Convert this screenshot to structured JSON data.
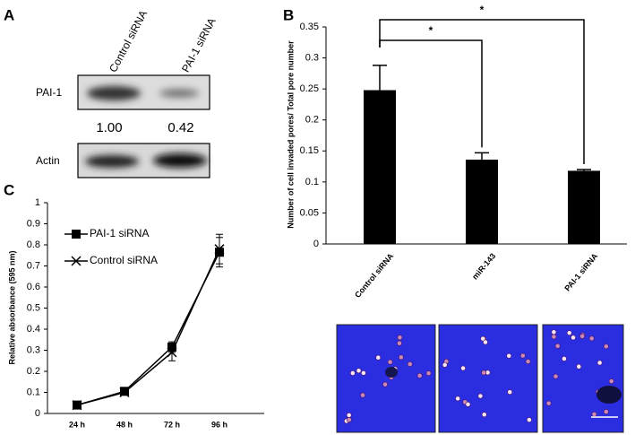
{
  "blot": {
    "panel": "A",
    "columns": [
      "Control  siRNA",
      "PAI-1 siRNA"
    ],
    "rows": [
      "PAI-1",
      "Actin"
    ],
    "quantification": [
      "1.00",
      "0.42"
    ]
  },
  "images": {
    "panel": "B"
  },
  "chart_data": [
    {
      "type": "bar",
      "panel": "B",
      "ylabel": "Number of  cell invaded pores/ Total pore number",
      "categories": [
        "Control siRNA",
        "miR-143",
        "PAI-1 siRNA"
      ],
      "values": [
        0.248,
        0.136,
        0.118
      ],
      "errors": [
        0.04,
        0.011,
        0.002
      ],
      "color": "#000000",
      "ylim": [
        0,
        0.35
      ],
      "yticks": [
        0,
        0.05,
        0.1,
        0.15,
        0.2,
        0.25,
        0.3,
        0.35
      ],
      "annotations": [
        "*",
        "*"
      ]
    },
    {
      "type": "line",
      "panel": "C",
      "ylabel": "Relative absorbance (595 nm)",
      "categories": [
        "24 h",
        "48 h",
        "72 h",
        "96 h"
      ],
      "series": [
        {
          "name": "PAI-1 siRNA",
          "color": "#000000",
          "marker": "square",
          "values": [
            0.04,
            0.105,
            0.315,
            0.765
          ],
          "errors": [
            0.005,
            0.01,
            0.025,
            0.07
          ]
        },
        {
          "name": "Control siRNA",
          "color": "#000000",
          "marker": "x",
          "values": [
            0.04,
            0.1,
            0.29,
            0.78
          ],
          "errors": [
            0.005,
            0.01,
            0.04,
            0.07
          ]
        }
      ],
      "ylim": [
        0,
        1
      ],
      "yticks": [
        0,
        0.1,
        0.2,
        0.3,
        0.4,
        0.5,
        0.6,
        0.7,
        0.8,
        0.9,
        1
      ]
    }
  ]
}
